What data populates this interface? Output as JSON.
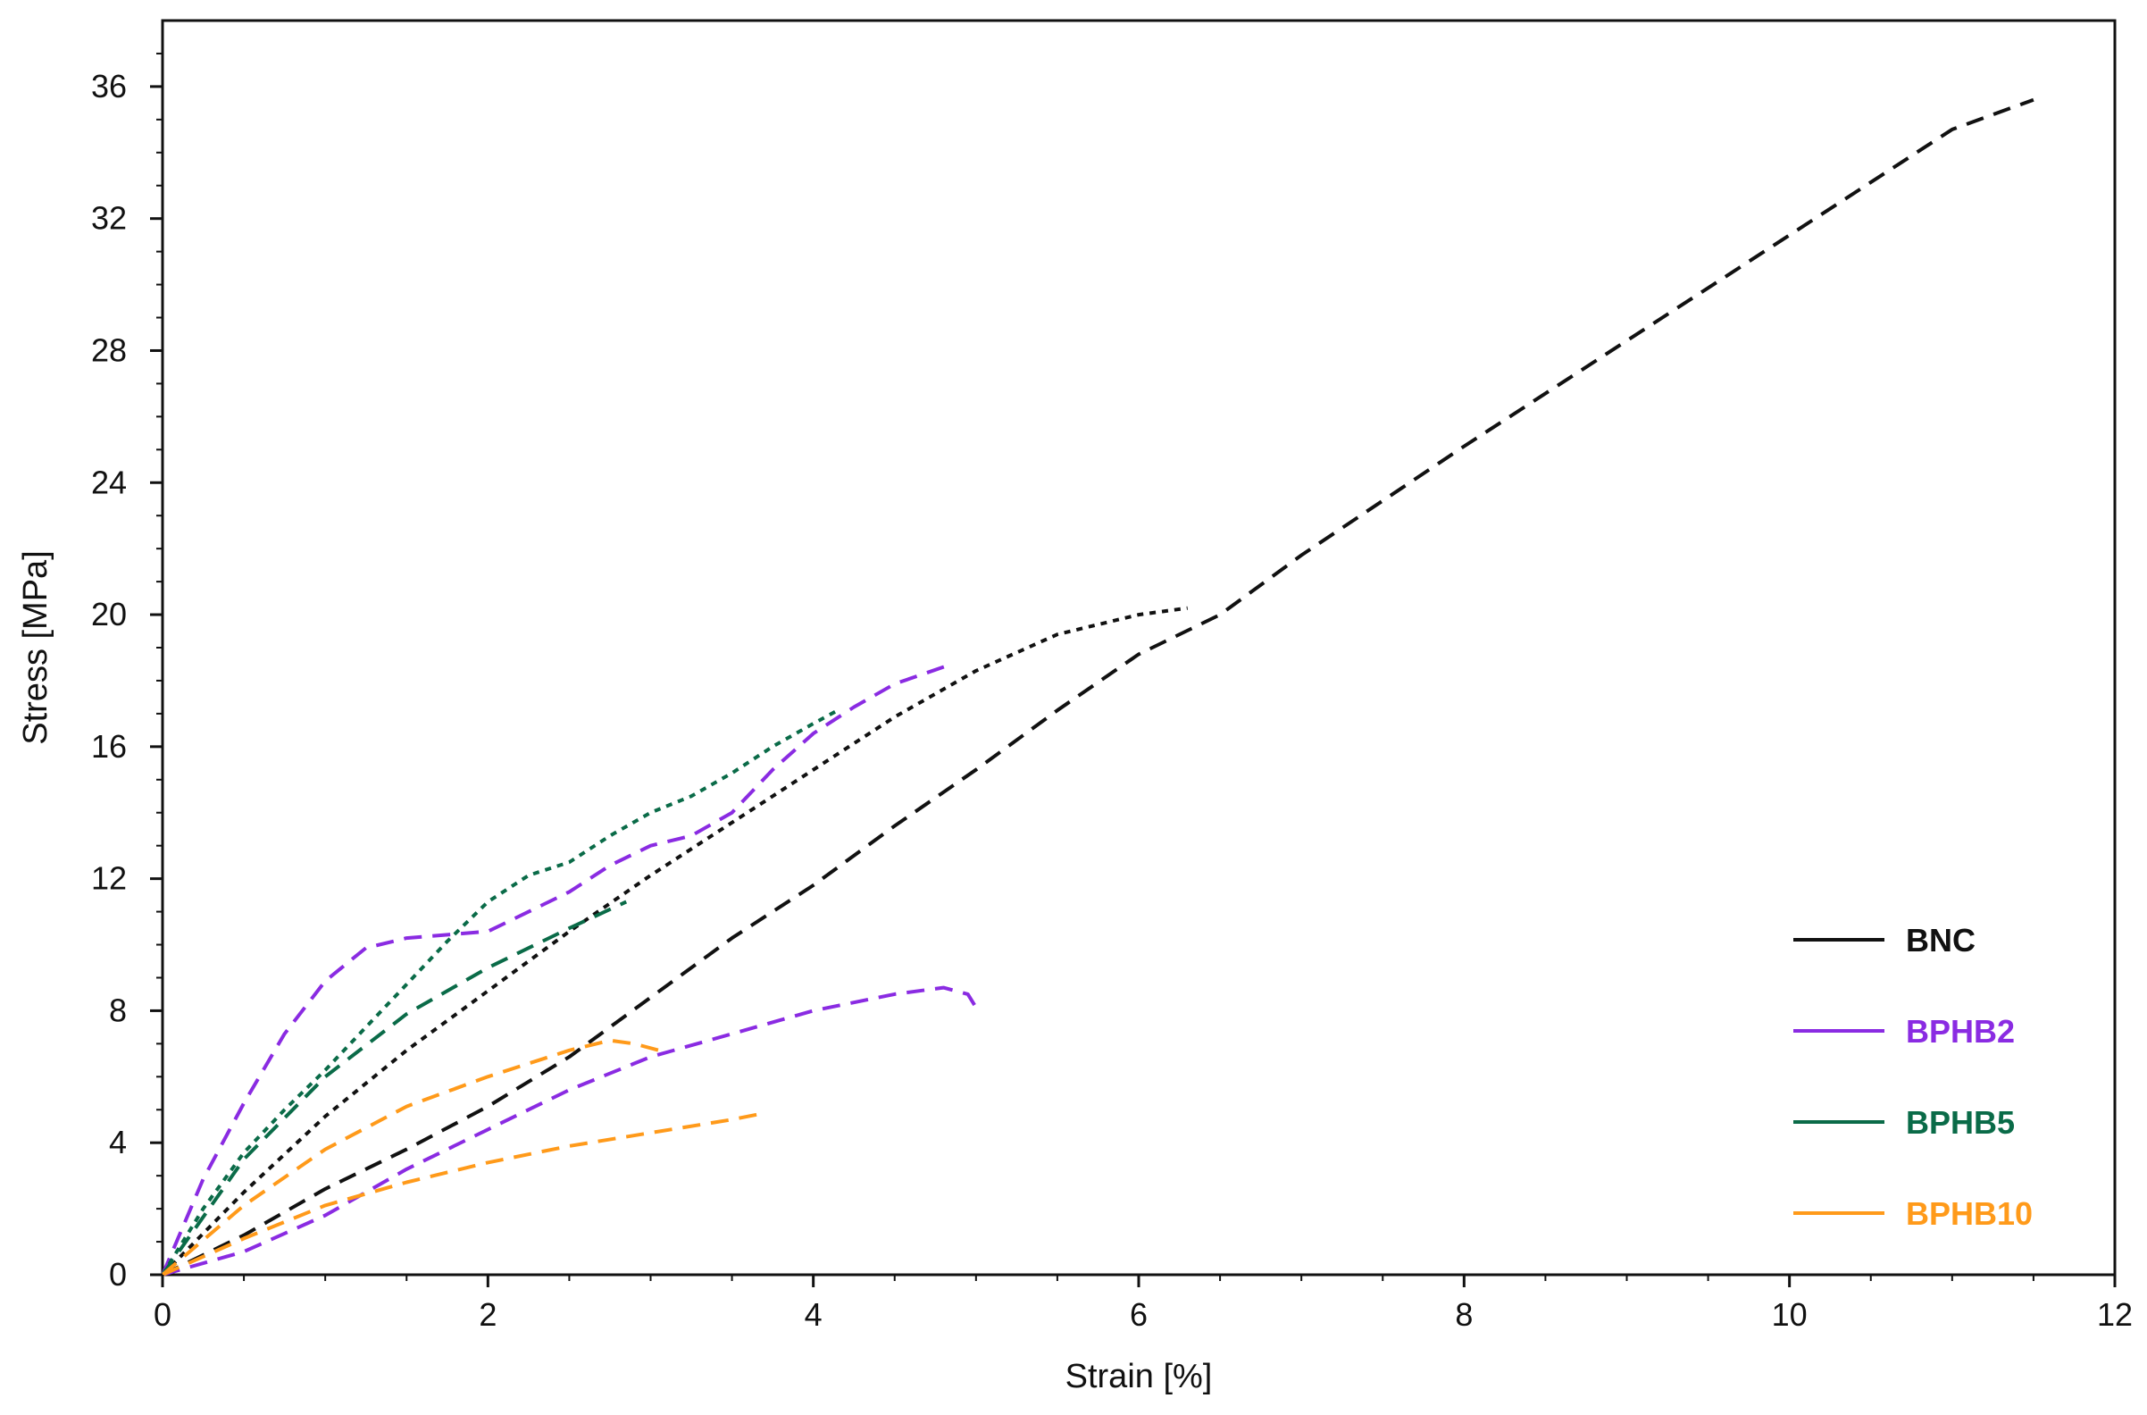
{
  "chart_data": {
    "type": "line",
    "title": "",
    "xlabel": "Strain [%]",
    "ylabel": "Stress [MPa]",
    "xlim": [
      0,
      12
    ],
    "ylim": [
      0,
      38
    ],
    "xticks": [
      0,
      2,
      4,
      6,
      8,
      10,
      12
    ],
    "xtick_labels": [
      "0",
      "2",
      "4",
      "6",
      "8",
      "10",
      "12"
    ],
    "yticks": [
      0,
      4,
      8,
      12,
      16,
      20,
      24,
      28,
      32,
      36
    ],
    "ytick_labels": [
      "0",
      "4",
      "8",
      "12",
      "16",
      "20",
      "24",
      "28",
      "32",
      "36"
    ],
    "grid": false,
    "legend_position": "bottom-right",
    "legend": [
      {
        "name": "BNC",
        "color": "#111111"
      },
      {
        "name": "BPHB2",
        "color": "#8a2be2"
      },
      {
        "name": "BPHB5",
        "color": "#0a6b48"
      },
      {
        "name": "BPHB10",
        "color": "#ff9a1a"
      }
    ],
    "series": [
      {
        "group": "BNC",
        "color": "#111111",
        "dash": "dotted",
        "x": [
          0,
          0.5,
          1.0,
          1.5,
          2.0,
          2.5,
          3.0,
          3.5,
          4.0,
          4.5,
          5.0,
          5.5,
          6.0,
          6.3
        ],
        "y": [
          0,
          2.5,
          4.8,
          6.8,
          8.6,
          10.4,
          12.1,
          13.7,
          15.3,
          16.9,
          18.3,
          19.4,
          20.0,
          20.2
        ]
      },
      {
        "group": "BNC",
        "color": "#111111",
        "dash": "dashed",
        "x": [
          0,
          0.5,
          1.0,
          1.5,
          2.0,
          2.5,
          3.0,
          3.5,
          4.0,
          4.5,
          5.0,
          5.5,
          6.0,
          6.5,
          7.0,
          8.0,
          9.0,
          10.0,
          11.0,
          11.5
        ],
        "y": [
          0,
          1.2,
          2.6,
          3.8,
          5.1,
          6.6,
          8.4,
          10.2,
          11.8,
          13.6,
          15.3,
          17.1,
          18.8,
          20.0,
          21.8,
          25.1,
          28.3,
          31.5,
          34.7,
          35.6
        ]
      },
      {
        "group": "BPHB2",
        "color": "#8a2be2",
        "dash": "dashed",
        "x": [
          0,
          0.25,
          0.5,
          0.75,
          1.0,
          1.25,
          1.5,
          2.0,
          2.25,
          2.5,
          2.75,
          3.0,
          3.25,
          3.5,
          3.75,
          4.0,
          4.25,
          4.5,
          4.85
        ],
        "y": [
          0,
          2.9,
          5.2,
          7.3,
          8.9,
          9.9,
          10.2,
          10.4,
          11.0,
          11.6,
          12.4,
          13.0,
          13.3,
          14.0,
          15.3,
          16.4,
          17.2,
          17.9,
          18.5
        ]
      },
      {
        "group": "BPHB2",
        "color": "#8a2be2",
        "dash": "dashed",
        "x": [
          0,
          0.5,
          1.0,
          1.5,
          2.0,
          2.5,
          3.0,
          3.5,
          4.0,
          4.5,
          4.8,
          4.95,
          5.0
        ],
        "y": [
          0,
          0.7,
          1.8,
          3.2,
          4.4,
          5.6,
          6.6,
          7.3,
          8.0,
          8.5,
          8.7,
          8.5,
          8.1
        ]
      },
      {
        "group": "BPHB5",
        "color": "#0a6b48",
        "dash": "dotted",
        "x": [
          0,
          0.25,
          0.5,
          0.75,
          1.0,
          1.25,
          1.5,
          1.75,
          2.0,
          2.25,
          2.5,
          2.75,
          3.0,
          3.25,
          3.5,
          3.75,
          4.0,
          4.15
        ],
        "y": [
          0,
          2.0,
          3.7,
          5.0,
          6.2,
          7.5,
          8.8,
          10.1,
          11.3,
          12.1,
          12.5,
          13.3,
          14.0,
          14.5,
          15.2,
          16.0,
          16.7,
          17.1
        ]
      },
      {
        "group": "BPHB5",
        "color": "#0a6b48",
        "dash": "dashed",
        "x": [
          0,
          0.5,
          1.0,
          1.5,
          2.0,
          2.5,
          2.85
        ],
        "y": [
          0,
          3.5,
          6.0,
          7.9,
          9.3,
          10.5,
          11.3
        ]
      },
      {
        "group": "BPHB10",
        "color": "#ff9a1a",
        "dash": "dashed",
        "x": [
          0,
          0.5,
          1.0,
          1.5,
          2.0,
          2.5,
          2.75,
          2.9,
          3.05
        ],
        "y": [
          0,
          2.1,
          3.8,
          5.1,
          6.0,
          6.8,
          7.1,
          7.0,
          6.8
        ]
      },
      {
        "group": "BPHB10",
        "color": "#ff9a1a",
        "dash": "dashed",
        "x": [
          0,
          0.5,
          1.0,
          1.5,
          2.0,
          2.5,
          3.0,
          3.5,
          3.7
        ],
        "y": [
          0,
          1.1,
          2.1,
          2.8,
          3.4,
          3.9,
          4.3,
          4.7,
          4.9
        ]
      }
    ]
  }
}
